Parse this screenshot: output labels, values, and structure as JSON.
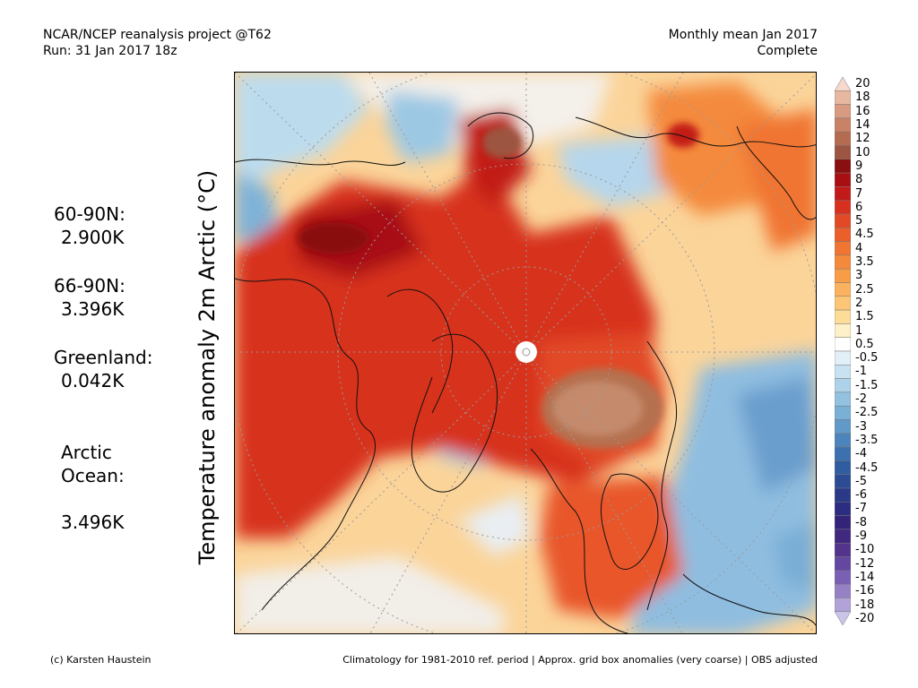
{
  "header": {
    "source_line": "NCAR/NCEP reanalysis project @T62",
    "run_line": "Run: 31 Jan 2017 18z",
    "period_line": "Monthly mean Jan 2017",
    "status_line": "Complete"
  },
  "axis_label": "Temperature anomaly 2m Arctic (°C)",
  "stats": [
    {
      "label": "60-90N:",
      "value": "2.900K"
    },
    {
      "label": "66-90N:",
      "value": "3.396K"
    },
    {
      "label": "Greenland:",
      "value": "0.042K"
    },
    {
      "label": "Arctic\nOcean:",
      "value": "3.496K"
    }
  ],
  "colorbar": {
    "labels": [
      "20",
      "18",
      "16",
      "14",
      "12",
      "10",
      "9",
      "8",
      "7",
      "6",
      "5",
      "4.5",
      "4",
      "3.5",
      "3",
      "2.5",
      "2",
      "1.5",
      "1",
      "0.5",
      "-0.5",
      "-1",
      "-1.5",
      "-2",
      "-2.5",
      "-3",
      "-3.5",
      "-4",
      "-4.5",
      "-5",
      "-6",
      "-7",
      "-8",
      "-9",
      "-10",
      "-12",
      "-14",
      "-16",
      "-18",
      "-20"
    ],
    "colors": [
      "#f6d8cc",
      "#e8b7a0",
      "#d99a82",
      "#c98266",
      "#b56b50",
      "#9c5540",
      "#8a0f10",
      "#a80f12",
      "#c21a18",
      "#d7301f",
      "#e24a25",
      "#ea5f2a",
      "#f07532",
      "#f48a3c",
      "#f89c48",
      "#fbb25e",
      "#fcc676",
      "#fddc98",
      "#fef0c8",
      "#ffffff",
      "#e3f0f8",
      "#c9e2f1",
      "#aed2ea",
      "#93c1e0",
      "#7aafd6",
      "#6199c9",
      "#4c84bc",
      "#3d70ae",
      "#305ca0",
      "#2b4b94",
      "#2a3a88",
      "#2c2d80",
      "#332479",
      "#40287f",
      "#52348d",
      "#6447a0",
      "#7a60b4",
      "#9680c6",
      "#b1a3d8",
      "#cbc3e8"
    ]
  },
  "footer": {
    "credit": "(c) Karsten Haustein",
    "note": "Climatology for 1981-2010 ref. period | Approx. grid box anomalies (very coarse) | OBS adjusted"
  }
}
